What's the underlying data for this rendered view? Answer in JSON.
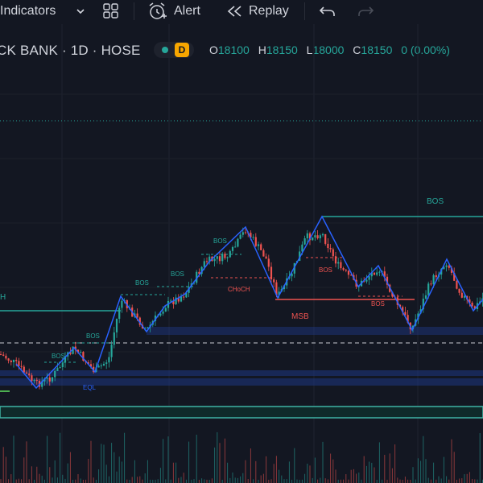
{
  "toolbar": {
    "indicators_label": "Indicators",
    "alert_label": "Alert",
    "replay_label": "Replay"
  },
  "symbol": {
    "title": "CK BANK · 1D · HOSE",
    "interval_badge": "D",
    "ohlc": [
      {
        "key": "O",
        "value": "18100"
      },
      {
        "key": "H",
        "value": "18150"
      },
      {
        "key": "L",
        "value": "18000"
      },
      {
        "key": "C",
        "value": "18150"
      }
    ],
    "change": "0 (0.00%)"
  },
  "annotations": {
    "bos": "BOS",
    "choch": "CHoCH",
    "msb": "MSB",
    "eql": "EQL",
    "h": "H"
  },
  "colors": {
    "background": "#131722",
    "up": "#26a69a",
    "down": "#ef5350",
    "zigzag": "#2962ff",
    "text": "#d1d4dc"
  }
}
